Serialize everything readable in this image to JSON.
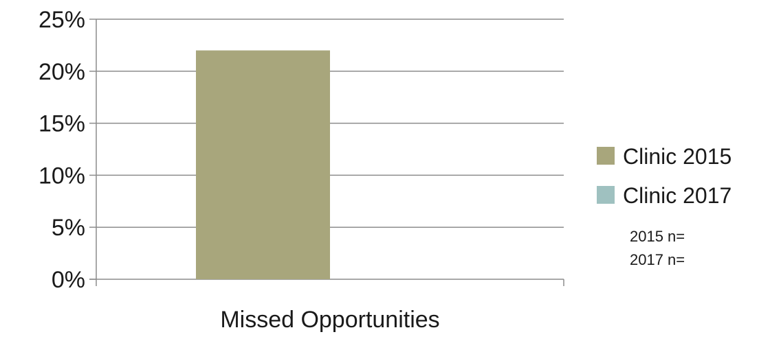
{
  "chart_data": {
    "type": "bar",
    "categories": [
      "Missed Opportunities"
    ],
    "series": [
      {
        "name": "Clinic 2015",
        "values": [
          22
        ],
        "color": "#a8a67c"
      },
      {
        "name": "Clinic 2017",
        "values": [
          0
        ],
        "color": "#9fc1c0"
      }
    ],
    "ylim": [
      0,
      25
    ],
    "yticks": [
      0,
      5,
      10,
      15,
      20,
      25
    ],
    "ytick_format": "percent",
    "grid": true,
    "legend_position": "right",
    "notes": [
      "2015 n=",
      "2017 n="
    ],
    "axis_color": "#8c8c8c",
    "grid_color": "#8c8c8c"
  }
}
